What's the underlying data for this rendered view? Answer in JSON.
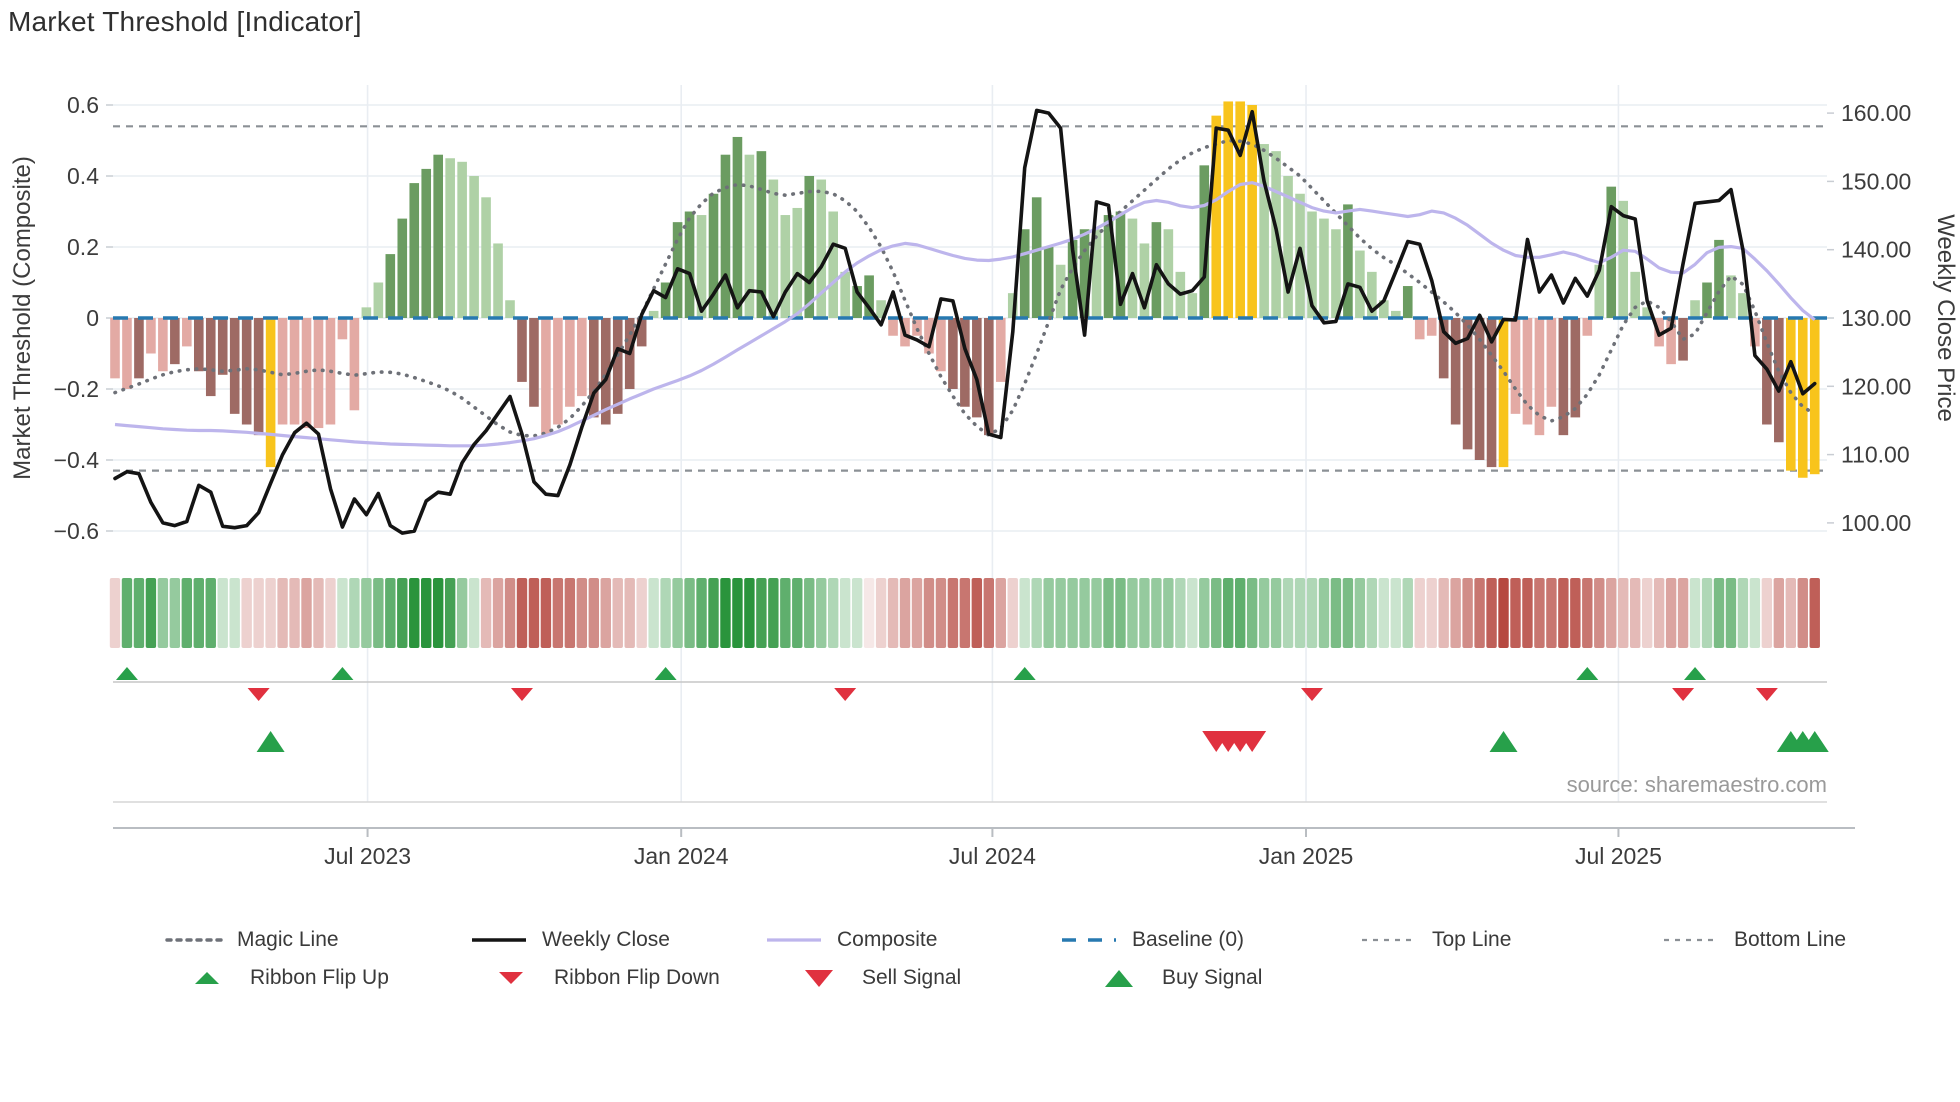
{
  "title": "Market Threshold [Indicator]",
  "source": "source: sharemaestro.com",
  "axes": {
    "left": {
      "label": "Market Threshold (Composite)",
      "ticks": [
        {
          "label": "0.6",
          "value": 0.6
        },
        {
          "label": "0.4",
          "value": 0.4
        },
        {
          "label": "0.2",
          "value": 0.2
        },
        {
          "label": "0",
          "value": 0
        },
        {
          "label": "−0.2",
          "value": -0.2
        },
        {
          "label": "−0.4",
          "value": -0.4
        },
        {
          "label": "−0.6",
          "value": -0.6
        }
      ]
    },
    "right": {
      "label": "Weekly Close Price",
      "ticks": [
        {
          "label": "160.00",
          "value": 160
        },
        {
          "label": "150.00",
          "value": 150
        },
        {
          "label": "140.00",
          "value": 140
        },
        {
          "label": "130.00",
          "value": 130
        },
        {
          "label": "120.00",
          "value": 120
        },
        {
          "label": "110.00",
          "value": 110
        },
        {
          "label": "100.00",
          "value": 100
        }
      ]
    },
    "x": {
      "ticks": [
        {
          "label": "Jul 2023",
          "week": 21.1
        },
        {
          "label": "Jan 2024",
          "week": 47.3
        },
        {
          "label": "Jul 2024",
          "week": 73.3
        },
        {
          "label": "Jan 2025",
          "week": 99.5
        },
        {
          "label": "Jul 2025",
          "week": 125.6
        }
      ]
    }
  },
  "chart_data": {
    "type": "bar+line",
    "title": "Market Threshold [Indicator]",
    "weeks": 143,
    "ylim_left": [
      -0.65,
      0.65
    ],
    "ylim_right": [
      97,
      163
    ],
    "top_line": 0.54,
    "bottom_line": -0.43,
    "baseline": 0,
    "histogram": {
      "values": [
        -0.17,
        -0.2,
        -0.17,
        -0.1,
        -0.15,
        -0.13,
        -0.08,
        -0.15,
        -0.22,
        -0.16,
        -0.27,
        -0.3,
        -0.33,
        -0.42,
        -0.3,
        -0.3,
        -0.31,
        -0.31,
        -0.3,
        -0.06,
        -0.26,
        0.03,
        0.1,
        0.18,
        0.28,
        0.38,
        0.42,
        0.46,
        0.45,
        0.44,
        0.4,
        0.34,
        0.21,
        0.05,
        -0.18,
        -0.25,
        -0.33,
        -0.3,
        -0.25,
        -0.22,
        -0.28,
        -0.3,
        -0.27,
        -0.2,
        -0.08,
        0.02,
        0.1,
        0.27,
        0.3,
        0.29,
        0.35,
        0.46,
        0.51,
        0.46,
        0.47,
        0.39,
        0.29,
        0.31,
        0.4,
        0.39,
        0.3,
        0.13,
        0.09,
        0.12,
        0.05,
        -0.05,
        -0.08,
        -0.05,
        -0.1,
        -0.15,
        -0.2,
        -0.25,
        -0.28,
        -0.33,
        -0.18,
        0.07,
        0.25,
        0.34,
        0.2,
        0.15,
        0.22,
        0.25,
        0.25,
        0.29,
        0.3,
        0.28,
        0.21,
        0.27,
        0.25,
        0.13,
        0.07,
        0.43,
        0.57,
        0.61,
        0.61,
        0.6,
        0.49,
        0.47,
        0.4,
        0.35,
        0.3,
        0.28,
        0.25,
        0.32,
        0.19,
        0.13,
        0.05,
        0.02,
        0.09,
        -0.06,
        -0.05,
        -0.17,
        -0.3,
        -0.37,
        -0.4,
        -0.42,
        -0.42,
        -0.27,
        -0.3,
        -0.33,
        -0.25,
        -0.33,
        -0.28,
        -0.05,
        0.15,
        0.37,
        0.33,
        0.13,
        0.03,
        -0.08,
        -0.13,
        -0.12,
        0.05,
        0.1,
        0.22,
        0.12,
        0.07,
        -0.08,
        -0.3,
        -0.35,
        -0.43,
        -0.45,
        -0.44
      ],
      "colors": [
        "lr",
        "lr",
        "dr",
        "lr",
        "lr",
        "dr",
        "lr",
        "dr",
        "dr",
        "dr",
        "dr",
        "dr",
        "dr",
        "y",
        "lr",
        "lr",
        "lr",
        "lr",
        "lr",
        "lr",
        "lr",
        "lg",
        "lg",
        "dg",
        "dg",
        "dg",
        "dg",
        "dg",
        "lg",
        "lg",
        "lg",
        "lg",
        "lg",
        "lg",
        "dr",
        "dr",
        "lr",
        "lr",
        "lr",
        "lr",
        "dr",
        "dr",
        "dr",
        "dr",
        "dr",
        "lg",
        "dg",
        "dg",
        "dg",
        "lg",
        "dg",
        "dg",
        "dg",
        "lg",
        "dg",
        "lg",
        "lg",
        "lg",
        "dg",
        "lg",
        "lg",
        "lg",
        "dg",
        "dg",
        "lg",
        "lr",
        "lr",
        "lr",
        "lr",
        "lr",
        "dr",
        "dr",
        "dr",
        "dr",
        "lr",
        "lg",
        "dg",
        "dg",
        "dg",
        "lg",
        "dg",
        "dg",
        "lg",
        "dg",
        "dg",
        "lg",
        "lg",
        "dg",
        "lg",
        "lg",
        "lg",
        "dg",
        "y",
        "y",
        "y",
        "y",
        "lg",
        "lg",
        "lg",
        "lg",
        "lg",
        "lg",
        "lg",
        "dg",
        "lg",
        "lg",
        "lg",
        "lg",
        "dg",
        "lr",
        "lr",
        "dr",
        "dr",
        "dr",
        "dr",
        "dr",
        "y",
        "lr",
        "lr",
        "lr",
        "lr",
        "dr",
        "dr",
        "lr",
        "lg",
        "dg",
        "lg",
        "lg",
        "lg",
        "lr",
        "lr",
        "dr",
        "lg",
        "dg",
        "dg",
        "lg",
        "lg",
        "lr",
        "dr",
        "dr",
        "y",
        "y",
        "y"
      ]
    },
    "weekly_close": [
      106.5,
      107.5,
      107.2,
      103.0,
      100.0,
      99.6,
      100.2,
      105.5,
      104.5,
      99.5,
      99.3,
      99.6,
      101.5,
      105.8,
      110.0,
      113.2,
      114.6,
      113.0,
      105.0,
      99.4,
      103.5,
      101.2,
      104.3,
      99.6,
      98.5,
      98.8,
      103.2,
      104.5,
      104.2,
      108.8,
      111.5,
      113.5,
      116.0,
      118.5,
      113.0,
      106.0,
      104.2,
      104.0,
      108.5,
      114.0,
      119.0,
      121.0,
      125.5,
      124.8,
      130.5,
      134.0,
      133.0,
      137.2,
      136.5,
      131.0,
      133.5,
      136.3,
      131.5,
      134.0,
      133.8,
      130.2,
      133.8,
      136.5,
      135.2,
      137.5,
      140.8,
      140.2,
      133.8,
      131.5,
      129.0,
      133.8,
      127.5,
      126.8,
      125.8,
      132.8,
      132.5,
      125.5,
      121.0,
      113.0,
      112.5,
      128.0,
      152.0,
      160.4,
      160.0,
      157.8,
      140.0,
      127.5,
      147.0,
      146.5,
      132.0,
      136.5,
      131.5,
      137.8,
      135.0,
      133.5,
      134.0,
      136.0,
      157.8,
      157.5,
      153.8,
      160.2,
      150.0,
      143.0,
      133.8,
      140.2,
      131.8,
      129.3,
      129.5,
      135.0,
      134.5,
      131.0,
      132.5,
      136.8,
      141.2,
      140.8,
      135.5,
      128.0,
      126.3,
      127.0,
      130.4,
      126.5,
      129.8,
      129.7,
      141.5,
      133.8,
      136.3,
      132.2,
      135.8,
      133.2,
      137.0,
      146.3,
      145.0,
      144.5,
      132.5,
      127.5,
      128.5,
      138.0,
      146.8,
      147.0,
      147.2,
      148.8,
      140.0,
      124.5,
      122.5,
      119.3,
      123.6,
      118.9,
      120.4
    ],
    "composite": [
      -0.3,
      -0.303,
      -0.306,
      -0.309,
      -0.312,
      -0.314,
      -0.316,
      -0.317,
      -0.317,
      -0.318,
      -0.32,
      -0.322,
      -0.325,
      -0.328,
      -0.331,
      -0.334,
      -0.337,
      -0.34,
      -0.343,
      -0.346,
      -0.349,
      -0.351,
      -0.353,
      -0.355,
      -0.356,
      -0.357,
      -0.358,
      -0.359,
      -0.36,
      -0.36,
      -0.36,
      -0.358,
      -0.355,
      -0.351,
      -0.346,
      -0.34,
      -0.331,
      -0.32,
      -0.306,
      -0.29,
      -0.274,
      -0.258,
      -0.243,
      -0.228,
      -0.214,
      -0.2,
      -0.188,
      -0.176,
      -0.163,
      -0.148,
      -0.13,
      -0.11,
      -0.09,
      -0.07,
      -0.05,
      -0.03,
      -0.01,
      0.012,
      0.04,
      0.07,
      0.1,
      0.13,
      0.155,
      0.175,
      0.192,
      0.203,
      0.21,
      0.206,
      0.196,
      0.186,
      0.176,
      0.168,
      0.163,
      0.162,
      0.166,
      0.172,
      0.181,
      0.191,
      0.201,
      0.211,
      0.222,
      0.236,
      0.252,
      0.271,
      0.291,
      0.311,
      0.326,
      0.331,
      0.326,
      0.316,
      0.311,
      0.317,
      0.333,
      0.356,
      0.376,
      0.381,
      0.371,
      0.356,
      0.341,
      0.326,
      0.311,
      0.301,
      0.296,
      0.301,
      0.306,
      0.301,
      0.296,
      0.291,
      0.286,
      0.291,
      0.301,
      0.296,
      0.281,
      0.261,
      0.236,
      0.211,
      0.191,
      0.176,
      0.171,
      0.171,
      0.178,
      0.186,
      0.178,
      0.166,
      0.156,
      0.171,
      0.191,
      0.188,
      0.166,
      0.141,
      0.129,
      0.127,
      0.151,
      0.184,
      0.199,
      0.201,
      0.196,
      0.166,
      0.133,
      0.096,
      0.057,
      0.021,
      -0.005
    ],
    "magic_line": [
      -0.21,
      -0.198,
      -0.186,
      -0.172,
      -0.16,
      -0.151,
      -0.146,
      -0.143,
      -0.146,
      -0.15,
      -0.147,
      -0.143,
      -0.146,
      -0.153,
      -0.16,
      -0.156,
      -0.15,
      -0.146,
      -0.15,
      -0.156,
      -0.161,
      -0.157,
      -0.152,
      -0.153,
      -0.158,
      -0.168,
      -0.179,
      -0.191,
      -0.206,
      -0.226,
      -0.251,
      -0.276,
      -0.301,
      -0.321,
      -0.331,
      -0.332,
      -0.324,
      -0.308,
      -0.283,
      -0.248,
      -0.208,
      -0.158,
      -0.103,
      -0.048,
      0.012,
      0.082,
      0.152,
      0.222,
      0.282,
      0.322,
      0.352,
      0.367,
      0.376,
      0.372,
      0.362,
      0.351,
      0.346,
      0.351,
      0.356,
      0.357,
      0.35,
      0.33,
      0.3,
      0.255,
      0.2,
      0.13,
      0.05,
      -0.03,
      -0.1,
      -0.165,
      -0.22,
      -0.27,
      -0.305,
      -0.33,
      -0.31,
      -0.26,
      -0.185,
      -0.1,
      -0.01,
      0.08,
      0.14,
      0.19,
      0.23,
      0.266,
      0.3,
      0.33,
      0.36,
      0.39,
      0.42,
      0.445,
      0.465,
      0.48,
      0.49,
      0.5,
      0.498,
      0.49,
      0.472,
      0.45,
      0.425,
      0.4,
      0.365,
      0.33,
      0.295,
      0.26,
      0.225,
      0.195,
      0.17,
      0.15,
      0.125,
      0.1,
      0.073,
      0.045,
      0.015,
      -0.02,
      -0.06,
      -0.105,
      -0.15,
      -0.2,
      -0.245,
      -0.275,
      -0.29,
      -0.278,
      -0.255,
      -0.215,
      -0.16,
      -0.09,
      -0.02,
      0.03,
      0.048,
      0.03,
      -0.01,
      -0.06,
      -0.045,
      0.015,
      0.075,
      0.118,
      0.095,
      0.02,
      -0.07,
      -0.15,
      -0.21,
      -0.25,
      -0.27
    ],
    "ribbon": [
      -1,
      3,
      3,
      3.5,
      2,
      2,
      3,
      3,
      3,
      1,
      1,
      -1,
      -1,
      -1,
      -1.5,
      -1.5,
      -2,
      -1.5,
      -1,
      1,
      1.5,
      2,
      2.5,
      3,
      3.5,
      4,
      4,
      4,
      3.5,
      2,
      1,
      -1.5,
      -2,
      -2.5,
      -3.5,
      -3.5,
      -3.5,
      -3,
      -3,
      -2.5,
      -2.5,
      -2,
      -1.5,
      -1.5,
      -1,
      1,
      1.5,
      2,
      2.5,
      3,
      3.5,
      4,
      4,
      4,
      3.5,
      3.5,
      3,
      3,
      2.5,
      2,
      1.5,
      1,
      1,
      -0.5,
      -1,
      -1.5,
      -2,
      -2,
      -2.5,
      -2.5,
      -3,
      -3,
      -3.5,
      -3,
      -2,
      -1,
      1,
      1.5,
      2,
      2,
      2,
      2,
      2,
      2.5,
      2.5,
      2,
      2,
      2,
      2,
      1.5,
      1,
      2,
      2.5,
      3,
      3,
      2.5,
      2,
      2,
      1.5,
      1.5,
      1.5,
      2,
      2.5,
      2.5,
      2,
      1.5,
      1,
      1,
      1.5,
      -1,
      -1,
      -1.5,
      -2,
      -2.5,
      -3,
      -3.5,
      -4,
      -3.5,
      -3.5,
      -3,
      -3,
      -3.5,
      -3.5,
      -3,
      -2.5,
      -2,
      -1.5,
      -1.5,
      -1,
      -1.5,
      -2,
      -2,
      1,
      1.5,
      2.5,
      2.5,
      1.5,
      1,
      -1,
      -2,
      -1.5,
      -2.5,
      -3.5
    ],
    "signals": {
      "ribbon_flip_up_weeks": [
        1,
        19,
        46,
        76,
        123,
        132
      ],
      "ribbon_flip_down_weeks": [
        12,
        34,
        61,
        100,
        131,
        138
      ],
      "buy_weeks": [
        13,
        116,
        140,
        141,
        142
      ],
      "sell_weeks": [
        92,
        93,
        94,
        95
      ]
    }
  },
  "legend": {
    "row1": [
      {
        "label": "Magic Line",
        "swatch": "magic-dash"
      },
      {
        "label": "Weekly Close",
        "swatch": "solid-black"
      },
      {
        "label": "Composite",
        "swatch": "solid-lavender"
      },
      {
        "label": "Baseline (0)",
        "swatch": "blue-dash"
      },
      {
        "label": "Top Line",
        "swatch": "gray-dot"
      },
      {
        "label": "Bottom Line",
        "swatch": "gray-dot"
      }
    ],
    "row2": [
      {
        "label": "Ribbon Flip Up",
        "swatch": "tri-up-small"
      },
      {
        "label": "Ribbon Flip Down",
        "swatch": "tri-down-small"
      },
      {
        "label": "Sell Signal",
        "swatch": "tri-down"
      },
      {
        "label": "Buy Signal",
        "swatch": "tri-up"
      }
    ]
  },
  "colors": {
    "light_red": "#e3aaa4",
    "dark_red": "#9e6a64",
    "light_green": "#afd1a6",
    "dark_green": "#6b9c61",
    "signal_yellow": "#f8c41c",
    "weekly_close": "#141414",
    "composite": "#bdb5ec",
    "magic_line": "#6e7178",
    "baseline": "#2779b0",
    "top_bottom_line": "#8b9095",
    "buy_green": "#27a04a",
    "sell_red": "#e0313f",
    "grid": "#e9edf2",
    "axis_text": "#3c3c3c",
    "source_text": "#9a9a9a"
  }
}
